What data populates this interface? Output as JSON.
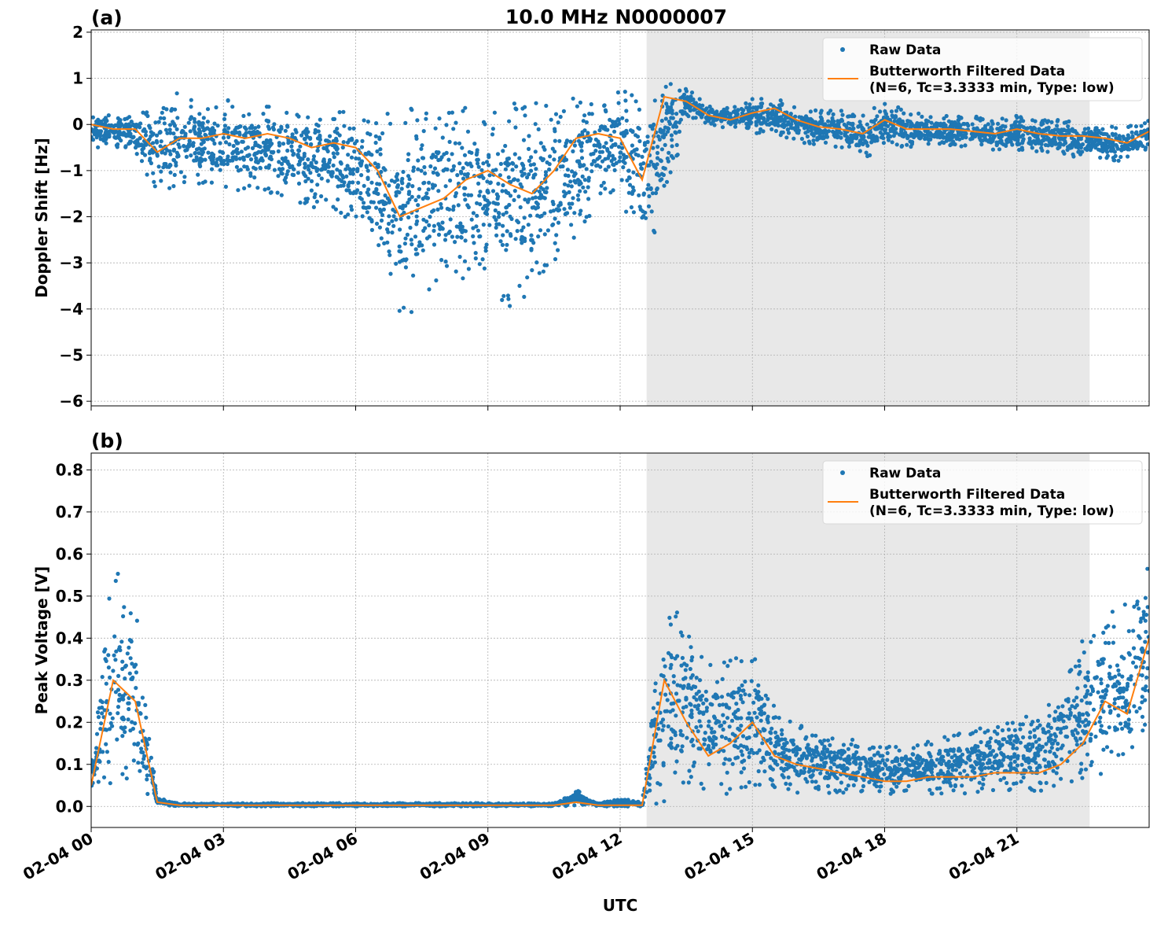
{
  "figure": {
    "title": "10.0 MHz N0000007",
    "xlabel": "UTC",
    "colors": {
      "raw": "#1f77b4",
      "filtered": "#ff7f0e",
      "shade": "#e8e8e8",
      "grid": "#b0b0b0"
    },
    "x_ticks": [
      "02-04 00",
      "02-04 03",
      "02-04 06",
      "02-04 09",
      "02-04 12",
      "02-04 15",
      "02-04 18",
      "02-04 21"
    ],
    "x_tick_hours": [
      0,
      3,
      6,
      9,
      12,
      15,
      18,
      21
    ],
    "xlim_hours": [
      0,
      24
    ],
    "shaded_span_hours": [
      12.6,
      22.65
    ],
    "legend": {
      "raw": "Raw Data",
      "filtered_line1": "Butterworth Filtered Data",
      "filtered_line2": "(N=6, Tc=3.3333 min, Type: low)",
      "placement": "upper-right"
    }
  },
  "chart_data": [
    {
      "type": "scatter+line",
      "panel_label": "(a)",
      "ylabel": "Doppler Shift [Hz]",
      "ylim": [
        -6.1,
        2.05
      ],
      "y_ticks": [
        2,
        1,
        0,
        -1,
        -2,
        -3,
        -4,
        -5,
        -6
      ],
      "y_tick_labels": [
        "2",
        "1",
        "0",
        "−1",
        "−2",
        "−3",
        "−4",
        "−5",
        "−6"
      ],
      "grid": true,
      "x_hours": [
        0,
        0.5,
        1,
        1.5,
        2,
        2.5,
        3,
        3.5,
        4,
        4.5,
        5,
        5.5,
        6,
        6.5,
        7,
        7.5,
        8,
        8.5,
        9,
        9.5,
        10,
        10.5,
        11,
        11.5,
        12,
        12.5,
        13,
        13.5,
        14,
        14.5,
        15,
        15.5,
        16,
        16.5,
        17,
        17.5,
        18,
        18.5,
        19,
        19.5,
        20,
        20.5,
        21,
        21.5,
        22,
        22.5,
        23,
        23.5,
        24
      ],
      "series": [
        {
          "name": "Butterworth Filtered Data",
          "values": [
            0,
            -0.1,
            -0.1,
            -0.6,
            -0.3,
            -0.3,
            -0.2,
            -0.3,
            -0.2,
            -0.3,
            -0.5,
            -0.4,
            -0.5,
            -1.0,
            -2.0,
            -1.8,
            -1.6,
            -1.2,
            -1.0,
            -1.3,
            -1.5,
            -1.0,
            -0.3,
            -0.2,
            -0.3,
            -1.2,
            0.6,
            0.5,
            0.2,
            0.1,
            0.25,
            0.35,
            0.1,
            -0.05,
            -0.1,
            -0.2,
            0.1,
            -0.1,
            -0.1,
            -0.1,
            -0.15,
            -0.2,
            -0.1,
            -0.2,
            -0.25,
            -0.25,
            -0.3,
            -0.4,
            -0.15
          ]
        },
        {
          "name": "Raw Data",
          "low": [
            -0.5,
            -0.5,
            -0.6,
            -1.6,
            -1.3,
            -1.3,
            -1.4,
            -1.6,
            -1.5,
            -1.6,
            -1.8,
            -1.8,
            -2.2,
            -3.2,
            -4.5,
            -3.8,
            -3.5,
            -3.5,
            -3.3,
            -4.2,
            -3.8,
            -3.0,
            -2.6,
            -1.6,
            -1.5,
            -3.0,
            -2.0,
            0.2,
            0,
            -0.1,
            -0.2,
            -0.2,
            -0.4,
            -0.5,
            -0.5,
            -0.8,
            -0.5,
            -0.5,
            -0.5,
            -0.5,
            -0.5,
            -0.6,
            -0.6,
            -0.6,
            -0.7,
            -0.7,
            -0.8,
            -0.8,
            -0.5
          ],
          "high": [
            0.2,
            0.2,
            0.2,
            0.5,
            0.7,
            0.5,
            0.6,
            0.5,
            0.5,
            0.4,
            0.4,
            0.4,
            0.3,
            0.2,
            0.3,
            0.4,
            0.4,
            0.4,
            0.4,
            0.5,
            0.5,
            0.4,
            0.6,
            0.5,
            0.8,
            0.5,
            1.3,
            0.8,
            0.4,
            0.4,
            0.6,
            0.6,
            0.4,
            0.3,
            0.3,
            0.2,
            0.5,
            0.3,
            0.2,
            0.2,
            0.2,
            0.1,
            0.2,
            0.1,
            0.1,
            0.05,
            0,
            0,
            0.1
          ]
        }
      ]
    },
    {
      "type": "scatter+line",
      "panel_label": "(b)",
      "ylabel": "Peak Voltage [V]",
      "ylim": [
        -0.05,
        0.84
      ],
      "y_ticks": [
        0.8,
        0.7,
        0.6,
        0.5,
        0.4,
        0.3,
        0.2,
        0.1,
        0.0
      ],
      "y_tick_labels": [
        "0.8",
        "0.7",
        "0.6",
        "0.5",
        "0.4",
        "0.3",
        "0.2",
        "0.1",
        "0.0"
      ],
      "grid": true,
      "x_hours": [
        0,
        0.5,
        1,
        1.5,
        2,
        2.5,
        3,
        3.5,
        4,
        4.5,
        5,
        5.5,
        6,
        6.5,
        7,
        7.5,
        8,
        8.5,
        9,
        9.5,
        10,
        10.5,
        11,
        11.5,
        12,
        12.5,
        13,
        13.5,
        14,
        14.5,
        15,
        15.5,
        16,
        16.5,
        17,
        17.5,
        18,
        18.5,
        19,
        19.5,
        20,
        20.5,
        21,
        21.5,
        22,
        22.5,
        23,
        23.5,
        24
      ],
      "series": [
        {
          "name": "Butterworth Filtered Data",
          "values": [
            0.05,
            0.3,
            0.25,
            0.01,
            0.003,
            0.003,
            0.003,
            0.003,
            0.003,
            0.003,
            0.003,
            0.003,
            0.003,
            0.003,
            0.003,
            0.003,
            0.003,
            0.003,
            0.003,
            0.003,
            0.003,
            0.003,
            0.01,
            0.003,
            0.003,
            0.003,
            0.3,
            0.2,
            0.12,
            0.15,
            0.2,
            0.12,
            0.1,
            0.09,
            0.08,
            0.07,
            0.06,
            0.06,
            0.07,
            0.07,
            0.07,
            0.08,
            0.08,
            0.08,
            0.1,
            0.15,
            0.25,
            0.22,
            0.4
          ]
        },
        {
          "name": "Raw Data",
          "low": [
            0.03,
            0.05,
            0.05,
            0.005,
            0,
            0,
            0,
            0,
            0,
            0,
            0,
            0,
            0,
            0,
            0,
            0,
            0,
            0,
            0,
            0,
            0,
            0,
            0,
            0,
            0,
            0,
            0.01,
            0.05,
            0.03,
            0.03,
            0.03,
            0.03,
            0.03,
            0.03,
            0.03,
            0.03,
            0.03,
            0.03,
            0.03,
            0.03,
            0.03,
            0.03,
            0.03,
            0.03,
            0.04,
            0.06,
            0.08,
            0.08,
            0.15
          ],
          "high": [
            0.12,
            0.6,
            0.5,
            0.02,
            0.008,
            0.008,
            0.008,
            0.008,
            0.008,
            0.008,
            0.008,
            0.008,
            0.008,
            0.008,
            0.008,
            0.008,
            0.008,
            0.008,
            0.008,
            0.008,
            0.008,
            0.008,
            0.04,
            0.01,
            0.02,
            0.01,
            0.5,
            0.45,
            0.35,
            0.35,
            0.4,
            0.25,
            0.2,
            0.18,
            0.17,
            0.15,
            0.14,
            0.15,
            0.16,
            0.17,
            0.18,
            0.2,
            0.22,
            0.22,
            0.3,
            0.4,
            0.45,
            0.5,
            0.6
          ]
        }
      ]
    }
  ]
}
